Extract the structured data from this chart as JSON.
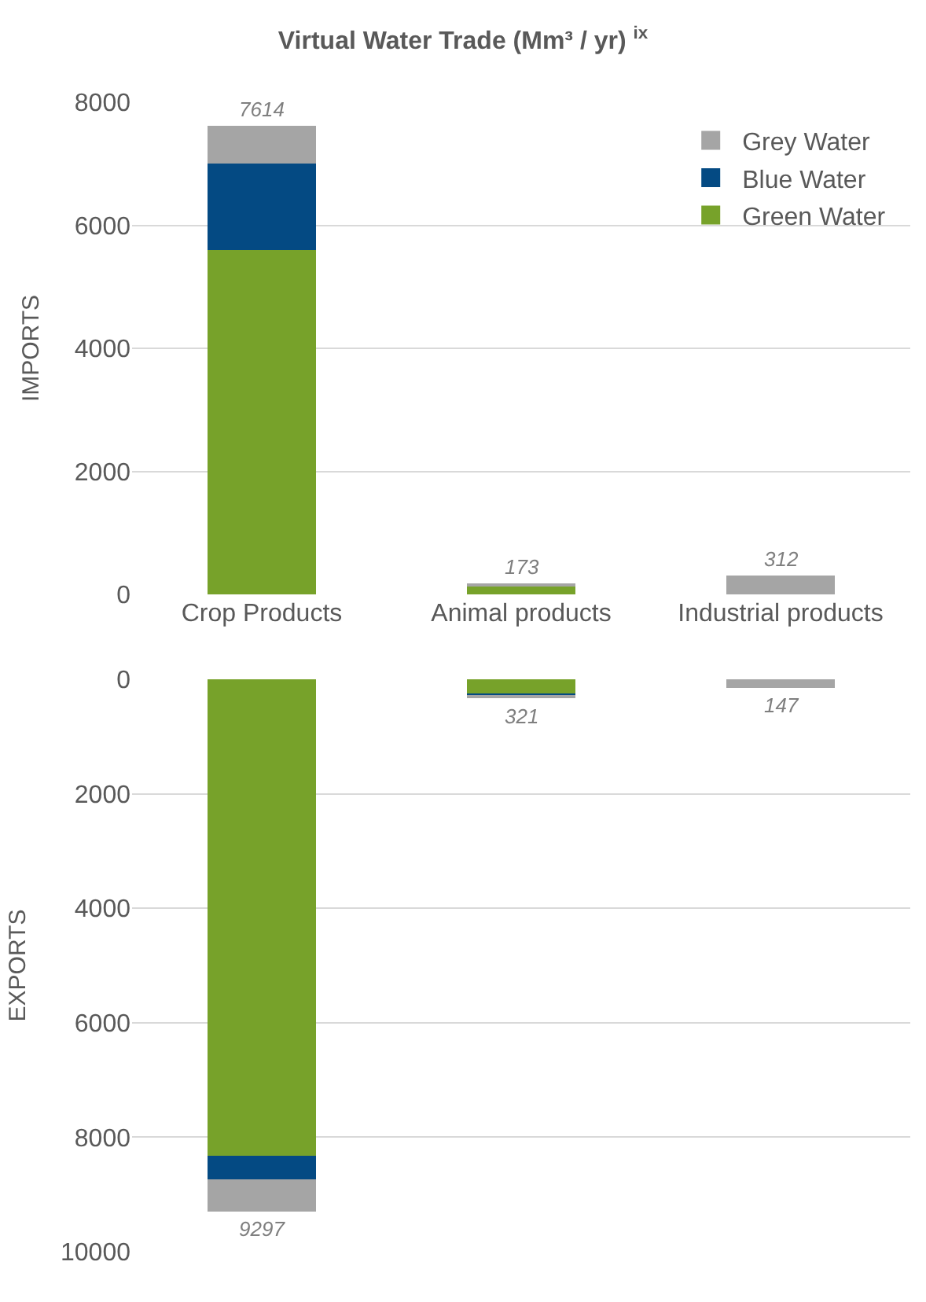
{
  "chart_data": [
    {
      "type": "bar",
      "title": "Virtual Water Trade (Mm³ / yr) $^{ix}$",
      "ylabel": "IMPORTS",
      "categories": [
        "Crop Products",
        "Animal products",
        "Industrial products"
      ],
      "stacked": true,
      "series": [
        {
          "name": "Green Water",
          "color": "#77a22a",
          "values": [
            5600,
            140,
            0
          ]
        },
        {
          "name": "Blue Water",
          "color": "#044a83",
          "values": [
            1400,
            13,
            0
          ]
        },
        {
          "name": "Grey Water",
          "color": "#a5a5a5",
          "values": [
            614,
            20,
            312
          ]
        }
      ],
      "totals": [
        "7614",
        "173",
        "312"
      ],
      "ylim": [
        0,
        8000
      ],
      "yticks": [
        0,
        2000,
        4000,
        6000,
        8000
      ],
      "grid": "y",
      "legend": "top right"
    },
    {
      "type": "bar",
      "ylabel": "EXPORTS",
      "categories": [
        "Crop Products",
        "Animal products",
        "Industrial products"
      ],
      "stacked": true,
      "series": [
        {
          "color": "#77a22a",
          "values": [
            8330,
            270,
            0
          ]
        },
        {
          "color": "#044a83",
          "values": [
            400,
            30,
            0
          ]
        },
        {
          "color": "#a5a5a5",
          "values": [
            567,
            21,
            147
          ]
        }
      ],
      "totals": [
        "9297",
        "321",
        "147"
      ],
      "ylim": [
        10000,
        0
      ],
      "yticks": [
        0,
        2000,
        4000,
        6000,
        8000,
        10000
      ],
      "grid": "y",
      "tick_labels": "y"
    }
  ]
}
